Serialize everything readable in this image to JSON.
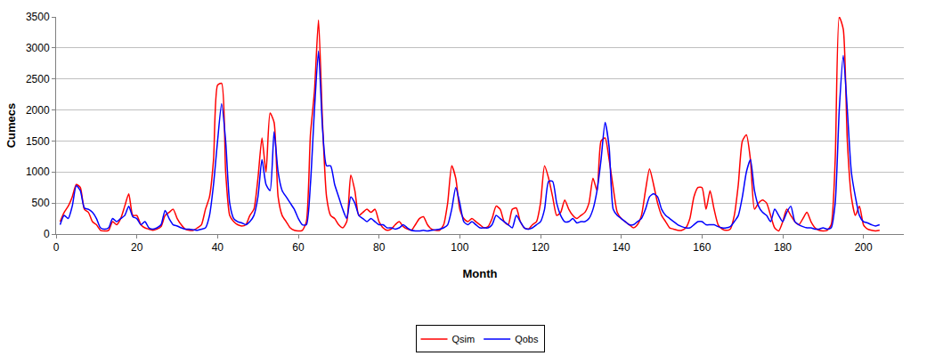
{
  "chart_data": {
    "type": "line",
    "x_label": "Month",
    "y_label": "Cumecs",
    "x": [
      1,
      2,
      3,
      4,
      5,
      6,
      7,
      8,
      9,
      10,
      11,
      12,
      13,
      14,
      15,
      16,
      17,
      18,
      19,
      20,
      21,
      22,
      23,
      24,
      25,
      26,
      27,
      28,
      29,
      30,
      31,
      32,
      33,
      34,
      35,
      36,
      37,
      38,
      39,
      40,
      41,
      42,
      43,
      44,
      45,
      46,
      47,
      48,
      49,
      50,
      51,
      52,
      53,
      54,
      55,
      56,
      57,
      58,
      59,
      60,
      61,
      62,
      63,
      64,
      65,
      66,
      67,
      68,
      69,
      70,
      71,
      72,
      73,
      74,
      75,
      76,
      77,
      78,
      79,
      80,
      81,
      82,
      83,
      84,
      85,
      86,
      87,
      88,
      89,
      90,
      91,
      92,
      93,
      94,
      95,
      96,
      97,
      98,
      99,
      100,
      101,
      102,
      103,
      104,
      105,
      106,
      107,
      108,
      109,
      110,
      111,
      112,
      113,
      114,
      115,
      116,
      117,
      118,
      119,
      120,
      121,
      122,
      123,
      124,
      125,
      126,
      127,
      128,
      129,
      130,
      131,
      132,
      133,
      134,
      135,
      136,
      137,
      138,
      139,
      140,
      141,
      142,
      143,
      144,
      145,
      146,
      147,
      148,
      149,
      150,
      151,
      152,
      153,
      154,
      155,
      156,
      157,
      158,
      159,
      160,
      161,
      162,
      163,
      164,
      165,
      166,
      167,
      168,
      169,
      170,
      171,
      172,
      173,
      174,
      175,
      176,
      177,
      178,
      179,
      180,
      181,
      182,
      183,
      184,
      185,
      186,
      187,
      188,
      189,
      190,
      191,
      192,
      193,
      194,
      195,
      196,
      197,
      198,
      199,
      200,
      201,
      202,
      203,
      204
    ],
    "series": [
      {
        "name": "Qsim",
        "color": "#ff0000",
        "line_style": "smooth",
        "values": [
          200,
          350,
          450,
          600,
          800,
          750,
          400,
          350,
          200,
          150,
          60,
          50,
          60,
          200,
          150,
          250,
          450,
          650,
          300,
          300,
          150,
          100,
          80,
          60,
          80,
          120,
          300,
          350,
          400,
          250,
          150,
          80,
          60,
          60,
          100,
          150,
          400,
          600,
          1200,
          2400,
          2430,
          1000,
          300,
          200,
          150,
          130,
          150,
          300,
          400,
          900,
          1550,
          1000,
          1950,
          1800,
          600,
          300,
          200,
          100,
          60,
          50,
          60,
          200,
          1600,
          2300,
          3450,
          1800,
          600,
          300,
          250,
          150,
          100,
          200,
          950,
          700,
          300,
          350,
          400,
          350,
          400,
          200,
          100,
          60,
          80,
          150,
          200,
          120,
          80,
          60,
          150,
          250,
          280,
          150,
          80,
          60,
          60,
          150,
          500,
          1100,
          900,
          400,
          250,
          200,
          250,
          200,
          150,
          100,
          120,
          250,
          450,
          400,
          200,
          150,
          400,
          420,
          200,
          100,
          80,
          150,
          200,
          500,
          1100,
          900,
          600,
          300,
          350,
          550,
          400,
          300,
          250,
          300,
          350,
          500,
          900,
          700,
          1500,
          1550,
          1200,
          750,
          350,
          250,
          200,
          150,
          100,
          150,
          300,
          700,
          1050,
          800,
          500,
          300,
          200,
          100,
          80,
          60,
          60,
          100,
          250,
          600,
          750,
          750,
          400,
          700,
          400,
          150,
          80,
          60,
          80,
          300,
          800,
          1500,
          1600,
          1200,
          400,
          500,
          550,
          500,
          300,
          100,
          50,
          200,
          400,
          300,
          200,
          150,
          250,
          350,
          200,
          100,
          60,
          50,
          60,
          150,
          1200,
          3500,
          3300,
          1500,
          600,
          300,
          450,
          150,
          80,
          60,
          50,
          60
        ]
      },
      {
        "name": "Qobs",
        "color": "#0000ff",
        "line_style": "smooth",
        "values": [
          150,
          300,
          250,
          450,
          780,
          700,
          420,
          400,
          350,
          250,
          100,
          80,
          100,
          250,
          200,
          250,
          300,
          450,
          280,
          250,
          150,
          200,
          100,
          80,
          100,
          150,
          380,
          250,
          150,
          130,
          100,
          80,
          80,
          70,
          60,
          80,
          100,
          300,
          800,
          1500,
          2100,
          1500,
          500,
          250,
          200,
          180,
          150,
          200,
          300,
          600,
          1200,
          800,
          700,
          1650,
          1000,
          700,
          600,
          500,
          400,
          250,
          150,
          150,
          800,
          2000,
          2950,
          1700,
          1100,
          1100,
          800,
          600,
          400,
          250,
          600,
          500,
          300,
          250,
          200,
          250,
          200,
          150,
          150,
          100,
          100,
          80,
          100,
          150,
          100,
          60,
          50,
          50,
          60,
          50,
          60,
          70,
          80,
          100,
          150,
          400,
          750,
          500,
          200,
          150,
          200,
          150,
          100,
          100,
          100,
          150,
          300,
          250,
          200,
          150,
          100,
          300,
          200,
          100,
          80,
          100,
          150,
          200,
          400,
          850,
          850,
          500,
          300,
          200,
          200,
          250,
          180,
          200,
          200,
          250,
          400,
          700,
          1200,
          1800,
          1400,
          400,
          300,
          250,
          200,
          150,
          150,
          200,
          250,
          400,
          600,
          650,
          600,
          400,
          300,
          250,
          200,
          150,
          120,
          100,
          100,
          150,
          200,
          200,
          150,
          150,
          150,
          120,
          100,
          100,
          120,
          200,
          300,
          600,
          1000,
          1200,
          700,
          450,
          350,
          300,
          200,
          400,
          300,
          200,
          350,
          450,
          200,
          150,
          120,
          100,
          100,
          80,
          80,
          100,
          80,
          100,
          500,
          2000,
          2880,
          2000,
          1000,
          600,
          300,
          200,
          180,
          150,
          130,
          150
        ]
      }
    ],
    "xlim": [
      0,
      210
    ],
    "xticks": [
      0,
      20,
      40,
      60,
      80,
      100,
      120,
      140,
      160,
      180,
      200
    ],
    "ylim": [
      0,
      3500
    ],
    "yticks": [
      0,
      500,
      1000,
      1500,
      2000,
      2500,
      3000,
      3500
    ],
    "grid": true,
    "legend": "bottom"
  }
}
